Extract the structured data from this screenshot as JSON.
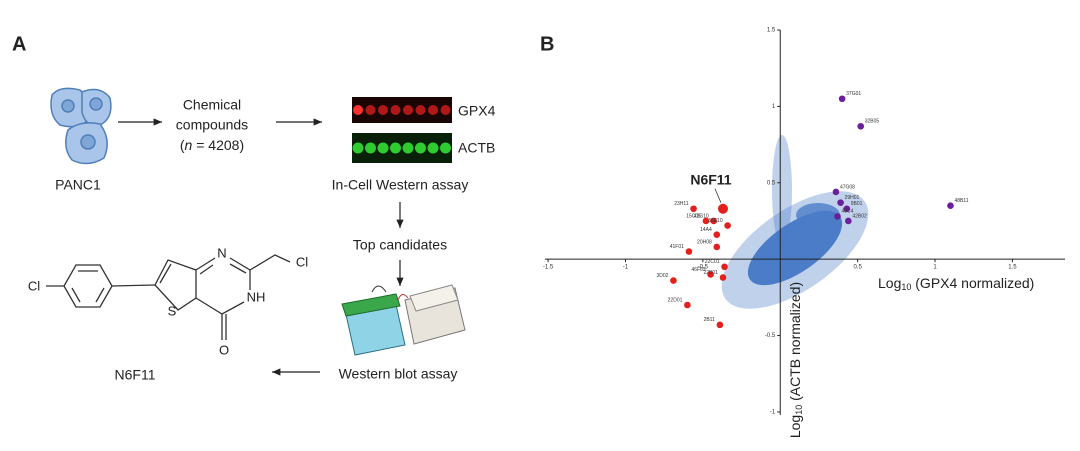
{
  "panel_a": {
    "label": "A",
    "cells_label": "PANC1",
    "compounds_line1": "Chemical",
    "compounds_line2": "compounds",
    "count_open": "(",
    "count_var": "n",
    "count_rest": " = 4208)",
    "blot_labels": [
      "GPX4",
      "ACTB"
    ],
    "step1": "In-Cell Western assay",
    "step2": "Top candidates",
    "step3": "Western blot assay",
    "compound": "N6F11",
    "atoms": [
      "Cl",
      "N",
      "NH",
      "S",
      "O",
      "Cl"
    ]
  },
  "chart_data": {
    "type": "scatter",
    "panel_label": "B",
    "xlabel": {
      "log": "Log",
      "base": "10",
      "text": " (GPX4 normalized)"
    },
    "ylabel": {
      "log": "Log",
      "base": "10",
      "text": " (ACTB normalized)"
    },
    "xlim": [
      -1.52,
      1.84
    ],
    "ylim": [
      -1.02,
      1.5
    ],
    "xticks": [
      -1.5,
      -1,
      -0.5,
      0.5,
      1,
      1.5
    ],
    "yticks": [
      -1,
      -0.5,
      0.5,
      1,
      1.5
    ],
    "series": [
      {
        "color": "#6b1f9a",
        "labels": [
          "37G01",
          "32B05",
          "47G08",
          "29H01",
          "9B01",
          "48C4",
          "42B02",
          "48B11"
        ],
        "x": [
          0.4,
          0.52,
          0.36,
          0.39,
          0.43,
          0.37,
          0.44,
          1.1
        ],
        "values": [
          1.05,
          0.87,
          0.44,
          0.37,
          0.33,
          0.28,
          0.25,
          0.35
        ]
      },
      {
        "color": "#e3201b",
        "labels": [
          "23H11",
          "15C05",
          "41G10",
          "36E10",
          "14A4",
          "20H08",
          "41F01",
          "3D02",
          "46F03",
          "22C01",
          "22B01",
          "22D01",
          "2B11"
        ],
        "x": [
          -0.56,
          -0.48,
          -0.43,
          -0.34,
          -0.41,
          -0.41,
          -0.59,
          -0.69,
          -0.45,
          -0.36,
          -0.37,
          -0.6,
          -0.39
        ],
        "values": [
          0.33,
          0.25,
          0.25,
          0.22,
          0.16,
          0.08,
          0.05,
          -0.14,
          -0.1,
          -0.05,
          -0.12,
          -0.3,
          -0.43
        ]
      },
      {
        "color": "#e3201b",
        "highlight": true,
        "labels": [
          "N6F11"
        ],
        "x": [
          -0.37
        ],
        "values": [
          0.33
        ]
      }
    ]
  }
}
